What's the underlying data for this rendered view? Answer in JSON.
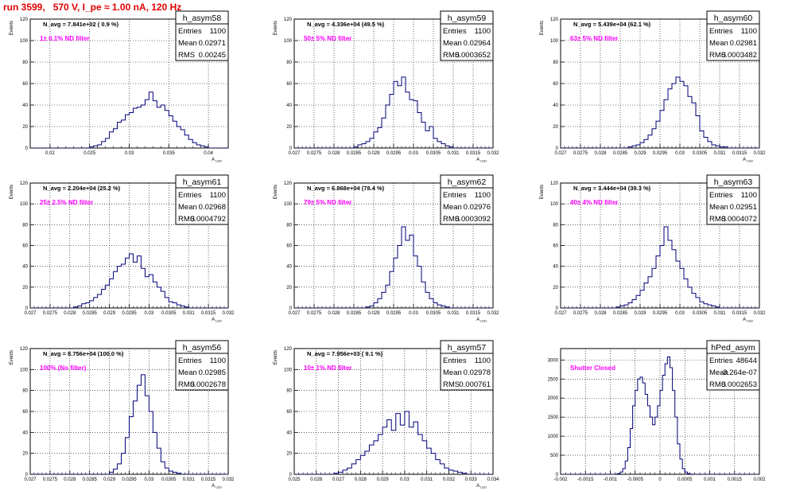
{
  "title": "run 3599,   570 V, I_pe ≈ 1.00 nA, 120 Hz",
  "chart_data": [
    {
      "type": "bar",
      "hist_name": "h_asym58",
      "ylabel": "Events",
      "xlabel": "A_LED",
      "xlim": [
        0.0175,
        0.0425
      ],
      "ylim": [
        0,
        120
      ],
      "xticks": [
        0.02,
        0.025,
        0.03,
        0.035,
        0.04
      ],
      "xtick_labels": [
        "0.02",
        "0.025",
        "0.03",
        "0.035",
        "0.04"
      ],
      "yticks": [
        0,
        20,
        40,
        60,
        80,
        100,
        120
      ],
      "annotation": "N_avg = 7.841e+02 ( 0.9 %)",
      "filter": "1± 0.1% ND filter",
      "stats": {
        "entries": "1100",
        "mean": "0.02971",
        "rms": "0.00245"
      },
      "bins": {
        "start": 0.0175,
        "width": 0.0005,
        "values": [
          0,
          0,
          0,
          0,
          0,
          0,
          0,
          0,
          0,
          0,
          0,
          0,
          0,
          0,
          0,
          1,
          2,
          3,
          6,
          9,
          15,
          18,
          24,
          26,
          31,
          33,
          37,
          38,
          40,
          45,
          52,
          44,
          38,
          40,
          35,
          30,
          25,
          20,
          17,
          12,
          8,
          5,
          3,
          2,
          1,
          0,
          0,
          0,
          0,
          0
        ]
      }
    },
    {
      "type": "bar",
      "hist_name": "h_asym59",
      "ylabel": "Events",
      "xlabel": "A_LED",
      "xlim": [
        0.027,
        0.032
      ],
      "ylim": [
        0,
        120
      ],
      "xticks": [
        0.027,
        0.0275,
        0.028,
        0.0285,
        0.029,
        0.0295,
        0.03,
        0.0305,
        0.031,
        0.0315,
        0.032
      ],
      "xtick_labels": [
        "0.027",
        "0.0275",
        "0.028",
        "0.0285",
        "0.029",
        "0.0295",
        "0.03",
        "0.0305",
        "0.031",
        "0.0315",
        "0.032"
      ],
      "yticks": [
        0,
        20,
        40,
        60,
        80,
        100,
        120
      ],
      "annotation": "N_avg = 4.336e+04 (49.5 %)",
      "filter": "50± 5% ND filter",
      "stats": {
        "entries": "1100",
        "mean": "0.02964",
        "rms": "0.0003652"
      },
      "bins": {
        "start": 0.027,
        "width": 0.0001,
        "values": [
          0,
          0,
          0,
          0,
          0,
          0,
          0,
          0,
          0,
          0,
          0,
          0,
          0,
          0,
          0,
          1,
          3,
          4,
          6,
          9,
          15,
          19,
          28,
          40,
          50,
          62,
          58,
          66,
          52,
          45,
          44,
          33,
          24,
          16,
          20,
          9,
          6,
          4,
          2,
          1,
          0,
          0,
          0,
          0,
          0,
          0,
          0,
          0,
          0,
          0
        ]
      }
    },
    {
      "type": "bar",
      "hist_name": "h_asym60",
      "ylabel": "Events",
      "xlabel": "A_LED",
      "xlim": [
        0.027,
        0.032
      ],
      "ylim": [
        0,
        120
      ],
      "xticks": [
        0.027,
        0.0275,
        0.028,
        0.0285,
        0.029,
        0.0295,
        0.03,
        0.0305,
        0.031,
        0.0315,
        0.032
      ],
      "xtick_labels": [
        "0.027",
        "0.0275",
        "0.028",
        "0.0285",
        "0.029",
        "0.0295",
        "0.03",
        "0.0305",
        "0.031",
        "0.0315",
        "0.032"
      ],
      "yticks": [
        0,
        20,
        40,
        60,
        80,
        100,
        120
      ],
      "annotation": "N_avg = 5.439e+04 (62.1 %)",
      "filter": "63± 5% ND filter",
      "stats": {
        "entries": "1100",
        "mean": "0.02981",
        "rms": "0.0003482"
      },
      "bins": {
        "start": 0.027,
        "width": 0.0001,
        "values": [
          0,
          0,
          0,
          0,
          0,
          0,
          0,
          0,
          0,
          0,
          0,
          0,
          0,
          0,
          0,
          0,
          0,
          1,
          2,
          3,
          5,
          8,
          12,
          18,
          25,
          35,
          45,
          55,
          60,
          66,
          62,
          58,
          48,
          42,
          30,
          16,
          10,
          6,
          3,
          2,
          1,
          1,
          0,
          0,
          0,
          0,
          0,
          0,
          0,
          0
        ]
      }
    },
    {
      "type": "bar",
      "hist_name": "h_asym61",
      "ylabel": "Events",
      "xlabel": "A_LED",
      "xlim": [
        0.027,
        0.032
      ],
      "ylim": [
        0,
        120
      ],
      "xticks": [
        0.027,
        0.0275,
        0.028,
        0.0285,
        0.029,
        0.0295,
        0.03,
        0.0305,
        0.031,
        0.0315,
        0.032
      ],
      "xtick_labels": [
        "0.027",
        "0.0275",
        "0.028",
        "0.0285",
        "0.029",
        "0.0295",
        "0.03",
        "0.0305",
        "0.031",
        "0.0315",
        "0.032"
      ],
      "yticks": [
        0,
        20,
        40,
        60,
        80,
        100,
        120
      ],
      "annotation": "N_avg = 2.204e+04 (25.2 %)",
      "filter": "25± 2.5% ND filter",
      "stats": {
        "entries": "1100",
        "mean": "0.02968",
        "rms": "0.0004792"
      },
      "bins": {
        "start": 0.027,
        "width": 0.0001,
        "values": [
          0,
          0,
          0,
          0,
          0,
          0,
          0,
          0,
          0,
          0,
          0,
          1,
          2,
          4,
          5,
          7,
          10,
          13,
          18,
          22,
          28,
          35,
          40,
          42,
          48,
          52,
          44,
          50,
          38,
          30,
          32,
          25,
          20,
          16,
          10,
          6,
          5,
          3,
          2,
          1,
          0,
          0,
          0,
          0,
          0,
          0,
          0,
          0,
          0,
          0
        ]
      }
    },
    {
      "type": "bar",
      "hist_name": "h_asym62",
      "ylabel": "Events",
      "xlabel": "A_LED",
      "xlim": [
        0.027,
        0.032
      ],
      "ylim": [
        0,
        120
      ],
      "xticks": [
        0.027,
        0.0275,
        0.028,
        0.0285,
        0.029,
        0.0295,
        0.03,
        0.0305,
        0.031,
        0.0315,
        0.032
      ],
      "xtick_labels": [
        "0.027",
        "0.0275",
        "0.028",
        "0.0285",
        "0.029",
        "0.0295",
        "0.03",
        "0.0305",
        "0.031",
        "0.0315",
        "0.032"
      ],
      "yticks": [
        0,
        20,
        40,
        60,
        80,
        100,
        120
      ],
      "annotation": "N_avg = 6.868e+04 (78.4 %)",
      "filter": "79± 5% ND filter",
      "stats": {
        "entries": "1100",
        "mean": "0.02976",
        "rms": "0.0003092"
      },
      "bins": {
        "start": 0.027,
        "width": 0.0001,
        "values": [
          0,
          0,
          0,
          0,
          0,
          0,
          0,
          0,
          0,
          0,
          0,
          0,
          0,
          0,
          0,
          0,
          0,
          0,
          1,
          2,
          5,
          9,
          15,
          22,
          35,
          48,
          60,
          78,
          65,
          70,
          50,
          40,
          25,
          15,
          9,
          5,
          3,
          2,
          1,
          0,
          0,
          0,
          0,
          0,
          0,
          0,
          0,
          0,
          0,
          0
        ]
      }
    },
    {
      "type": "bar",
      "hist_name": "h_asym63",
      "ylabel": "Events",
      "xlabel": "A_LED",
      "xlim": [
        0.027,
        0.032
      ],
      "ylim": [
        0,
        120
      ],
      "xticks": [
        0.027,
        0.0275,
        0.028,
        0.0285,
        0.029,
        0.0295,
        0.03,
        0.0305,
        0.031,
        0.0315,
        0.032
      ],
      "xtick_labels": [
        "0.027",
        "0.0275",
        "0.028",
        "0.0285",
        "0.029",
        "0.0295",
        "0.03",
        "0.0305",
        "0.031",
        "0.0315",
        "0.032"
      ],
      "yticks": [
        0,
        20,
        40,
        60,
        80,
        100,
        120
      ],
      "annotation": "N_avg = 3.444e+04 (39.3 %)",
      "filter": "40± 4% ND filter",
      "stats": {
        "entries": "1100",
        "mean": "0.02951",
        "rms": "0.0004072"
      },
      "bins": {
        "start": 0.027,
        "width": 0.0001,
        "values": [
          0,
          0,
          0,
          0,
          0,
          0,
          0,
          0,
          0,
          0,
          0,
          0,
          0,
          0,
          1,
          2,
          3,
          5,
          8,
          12,
          17,
          24,
          30,
          38,
          50,
          60,
          78,
          65,
          56,
          45,
          38,
          28,
          20,
          14,
          10,
          6,
          4,
          3,
          2,
          1,
          0,
          0,
          0,
          0,
          0,
          0,
          0,
          0,
          0,
          0
        ]
      }
    },
    {
      "type": "bar",
      "hist_name": "h_asym56",
      "ylabel": "Events",
      "xlabel": "A_LED",
      "xlim": [
        0.027,
        0.032
      ],
      "ylim": [
        0,
        120
      ],
      "xticks": [
        0.027,
        0.0275,
        0.028,
        0.0285,
        0.029,
        0.0295,
        0.03,
        0.0305,
        0.031,
        0.0315,
        0.032
      ],
      "xtick_labels": [
        "0.027",
        "0.0275",
        "0.028",
        "0.0285",
        "0.029",
        "0.0295",
        "0.03",
        "0.0305",
        "0.031",
        "0.0315",
        "0.032"
      ],
      "yticks": [
        0,
        20,
        40,
        60,
        80,
        100,
        120
      ],
      "annotation": "N_avg = 8.756e+04 (100.0 %)",
      "filter": "100% (No filter)",
      "stats": {
        "entries": "1100",
        "mean": "0.02985",
        "rms": "0.0002678"
      },
      "bins": {
        "start": 0.027,
        "width": 0.0001,
        "values": [
          0,
          0,
          0,
          0,
          0,
          0,
          0,
          0,
          0,
          0,
          0,
          0,
          0,
          0,
          0,
          0,
          0,
          0,
          0,
          0,
          2,
          5,
          10,
          20,
          35,
          55,
          70,
          85,
          95,
          75,
          60,
          40,
          25,
          12,
          6,
          3,
          2,
          1,
          0,
          0,
          0,
          0,
          0,
          0,
          0,
          0,
          0,
          0,
          0,
          0
        ]
      }
    },
    {
      "type": "bar",
      "hist_name": "h_asym57",
      "ylabel": "Events",
      "xlabel": "A_LED",
      "xlim": [
        0.025,
        0.034
      ],
      "ylim": [
        0,
        120
      ],
      "xticks": [
        0.025,
        0.026,
        0.027,
        0.028,
        0.029,
        0.03,
        0.031,
        0.032,
        0.033,
        0.034
      ],
      "xtick_labels": [
        "0.025",
        "0.026",
        "0.027",
        "0.028",
        "0.029",
        "0.03",
        "0.031",
        "0.032",
        "0.033",
        "0.034"
      ],
      "yticks": [
        0,
        20,
        40,
        60,
        80,
        100,
        120
      ],
      "annotation": "N_avg = 7.956e+03 ( 9.1 %)",
      "filter": "10± 1% ND filter",
      "stats": {
        "entries": "1100",
        "mean": "0.02978",
        "rms": "0.000761"
      },
      "bins": {
        "start": 0.025,
        "width": 0.0002,
        "values": [
          0,
          0,
          0,
          0,
          0,
          0,
          0,
          0,
          0,
          1,
          2,
          4,
          6,
          10,
          14,
          18,
          22,
          28,
          32,
          38,
          45,
          52,
          42,
          58,
          47,
          60,
          45,
          50,
          38,
          32,
          25,
          20,
          14,
          10,
          6,
          4,
          3,
          2,
          1,
          0,
          0,
          0,
          0,
          0,
          0
        ]
      }
    },
    {
      "type": "bar",
      "hist_name": "hPed_asym",
      "ylabel": "",
      "xlabel": "",
      "xlim": [
        -0.002,
        0.002
      ],
      "ylim": [
        0,
        3300
      ],
      "xticks": [
        -0.002,
        -0.0015,
        -0.001,
        -0.0005,
        0,
        0.0005,
        0.001,
        0.0015,
        0.002
      ],
      "xtick_labels": [
        "-0.002",
        "-0.0015",
        "-0.001",
        "-0.0005",
        "0",
        "0.0005",
        "0.001",
        "0.0015",
        "0.002"
      ],
      "yticks": [
        0,
        500,
        1000,
        1500,
        2000,
        2500,
        3000
      ],
      "annotation": "",
      "filter": "Shutter Closed",
      "stats": {
        "entries": "48644",
        "mean": "-3.264e-07",
        "rms": "0.0002653"
      },
      "bins": {
        "start": -0.002,
        "width": 5e-05,
        "values": [
          0,
          0,
          0,
          0,
          0,
          0,
          0,
          0,
          0,
          0,
          0,
          0,
          0,
          0,
          0,
          0,
          0,
          0,
          0,
          0,
          0,
          0,
          5,
          20,
          60,
          150,
          350,
          700,
          1200,
          1800,
          2200,
          2500,
          2550,
          2400,
          2100,
          1800,
          1500,
          1300,
          1500,
          1800,
          2200,
          2600,
          2900,
          3080,
          2800,
          2200,
          1500,
          800,
          400,
          150,
          60,
          20,
          5,
          0,
          0,
          0,
          0,
          0,
          0,
          0,
          0,
          0,
          0,
          0,
          0,
          0,
          0,
          0,
          0,
          0,
          0,
          0,
          0,
          0,
          0,
          0,
          0,
          0,
          0,
          0
        ]
      }
    }
  ],
  "labels": {
    "entries": "Entries",
    "mean": "Mean",
    "rms": "RMS"
  }
}
